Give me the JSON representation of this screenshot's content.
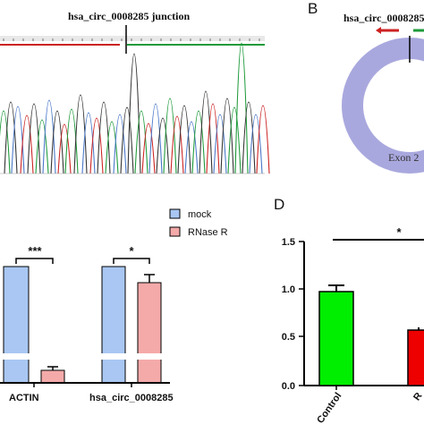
{
  "panels": {
    "a": {
      "title": "hsa_circ_0008285 junction"
    },
    "b": {
      "letter": "B",
      "title": "hsa_circ_0008285",
      "exon_label": "Exon 2"
    },
    "c": {
      "legend": [
        "mock",
        "RNase R"
      ],
      "categories": [
        "ACTIN",
        "hsa_circ_0008285"
      ],
      "significance": [
        "***",
        "*"
      ]
    },
    "d": {
      "letter": "D",
      "yticks": [
        "0.0",
        "0.5",
        "1.0",
        "1.5"
      ],
      "xtick": "Control",
      "significance": "*"
    }
  },
  "colors": {
    "mock": "#a9c7f2",
    "rnase": "#f5aaaa",
    "control": "#00ee00",
    "rnase_d": "#ee0000",
    "ring": "#a9a8de",
    "trace_red": "#cc2222",
    "trace_green": "#1e9a3a",
    "trace_black": "#333333",
    "trace_blue": "#4a78c8"
  },
  "chart_data": [
    {
      "type": "line",
      "title": "hsa_circ_0008285 junction",
      "note": "Sanger sequencing chromatogram"
    },
    {
      "type": "bar",
      "categories": [
        "ACTIN",
        "hsa_circ_0008285"
      ],
      "series": [
        {
          "name": "mock",
          "values": [
            1.0,
            1.0
          ],
          "errors": [
            0,
            0
          ]
        },
        {
          "name": "RNase R",
          "values": [
            0.12,
            0.85
          ],
          "errors": [
            0.02,
            0.06
          ]
        }
      ],
      "significance": [
        "***",
        "*"
      ],
      "axis_break": true,
      "legend": "top-right"
    },
    {
      "type": "bar",
      "categories": [
        "Control",
        "R"
      ],
      "values": [
        0.98,
        0.56
      ],
      "errors": [
        0.06,
        0.03
      ],
      "ylim": [
        0,
        1.5
      ],
      "yticks": [
        0.0,
        0.5,
        1.0,
        1.5
      ],
      "significance": "*"
    }
  ]
}
